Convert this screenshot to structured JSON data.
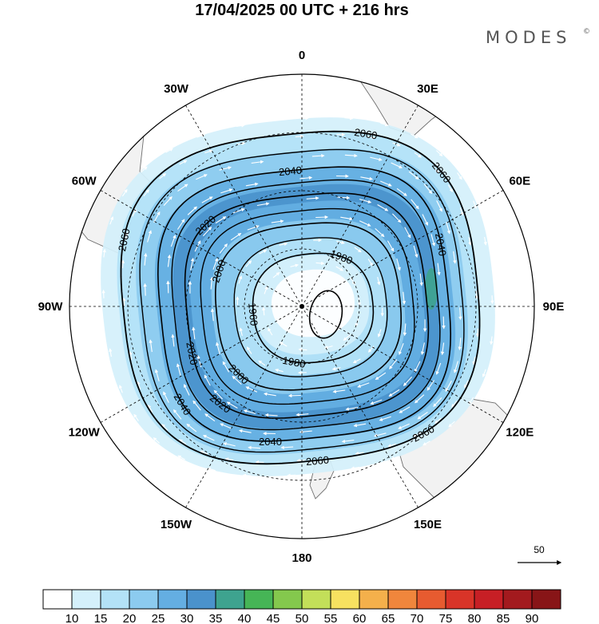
{
  "title": "17/04/2025  00 UTC  + 216 hrs",
  "brand": {
    "name": "MODES",
    "mark": "©"
  },
  "longitude_labels": [
    "0",
    "30E",
    "60E",
    "90E",
    "120E",
    "150E",
    "180",
    "150W",
    "120W",
    "90W",
    "60W",
    "30W"
  ],
  "contour_levels": [
    "1960",
    "1980",
    "2000",
    "2020",
    "2040",
    "2060"
  ],
  "contour_labels": [
    {
      "ring": 5,
      "angle": 200,
      "text": "2060"
    },
    {
      "ring": 5,
      "angle": 90,
      "text": "2060"
    },
    {
      "ring": 5,
      "angle": 325,
      "text": "2060"
    },
    {
      "ring": 5,
      "angle": 60,
      "text": "2060"
    },
    {
      "ring": 5,
      "angle": 290,
      "text": "2060"
    },
    {
      "ring": 4,
      "angle": 150,
      "text": "2040"
    },
    {
      "ring": 4,
      "angle": 270,
      "text": "2040"
    },
    {
      "ring": 4,
      "angle": 350,
      "text": "2040"
    },
    {
      "ring": 4,
      "angle": 100,
      "text": "2040"
    },
    {
      "ring": 3,
      "angle": 135,
      "text": "2020"
    },
    {
      "ring": 3,
      "angle": 228,
      "text": "2020"
    },
    {
      "ring": 3,
      "angle": 170,
      "text": "2020"
    },
    {
      "ring": 2,
      "angle": 205,
      "text": "2000"
    },
    {
      "ring": 2,
      "angle": 140,
      "text": "2000"
    },
    {
      "ring": 1,
      "angle": 180,
      "text": "1960"
    },
    {
      "ring": 1,
      "angle": 110,
      "text": "1980"
    },
    {
      "ring": 1,
      "angle": 300,
      "text": "1980"
    }
  ],
  "colors": {
    "land": "#f2f2f2",
    "ocean": "#ffffff",
    "contour": "#000000",
    "vector": "#ffffff",
    "grid": "#000000"
  },
  "colorbar": {
    "labels": [
      "10",
      "15",
      "20",
      "25",
      "30",
      "35",
      "40",
      "45",
      "50",
      "55",
      "60",
      "65",
      "70",
      "75",
      "80",
      "85",
      "90"
    ],
    "colors": [
      "#ffffff",
      "#d4f0fb",
      "#b3e2f7",
      "#8ccbef",
      "#64aee2",
      "#4a92cc",
      "#3ea38f",
      "#46b556",
      "#84c84d",
      "#c3df59",
      "#f7e160",
      "#f4b04b",
      "#f0863c",
      "#e75b30",
      "#d93428",
      "#c71f25",
      "#a31a1e",
      "#881517"
    ]
  },
  "reference_vector": {
    "label": "50"
  }
}
